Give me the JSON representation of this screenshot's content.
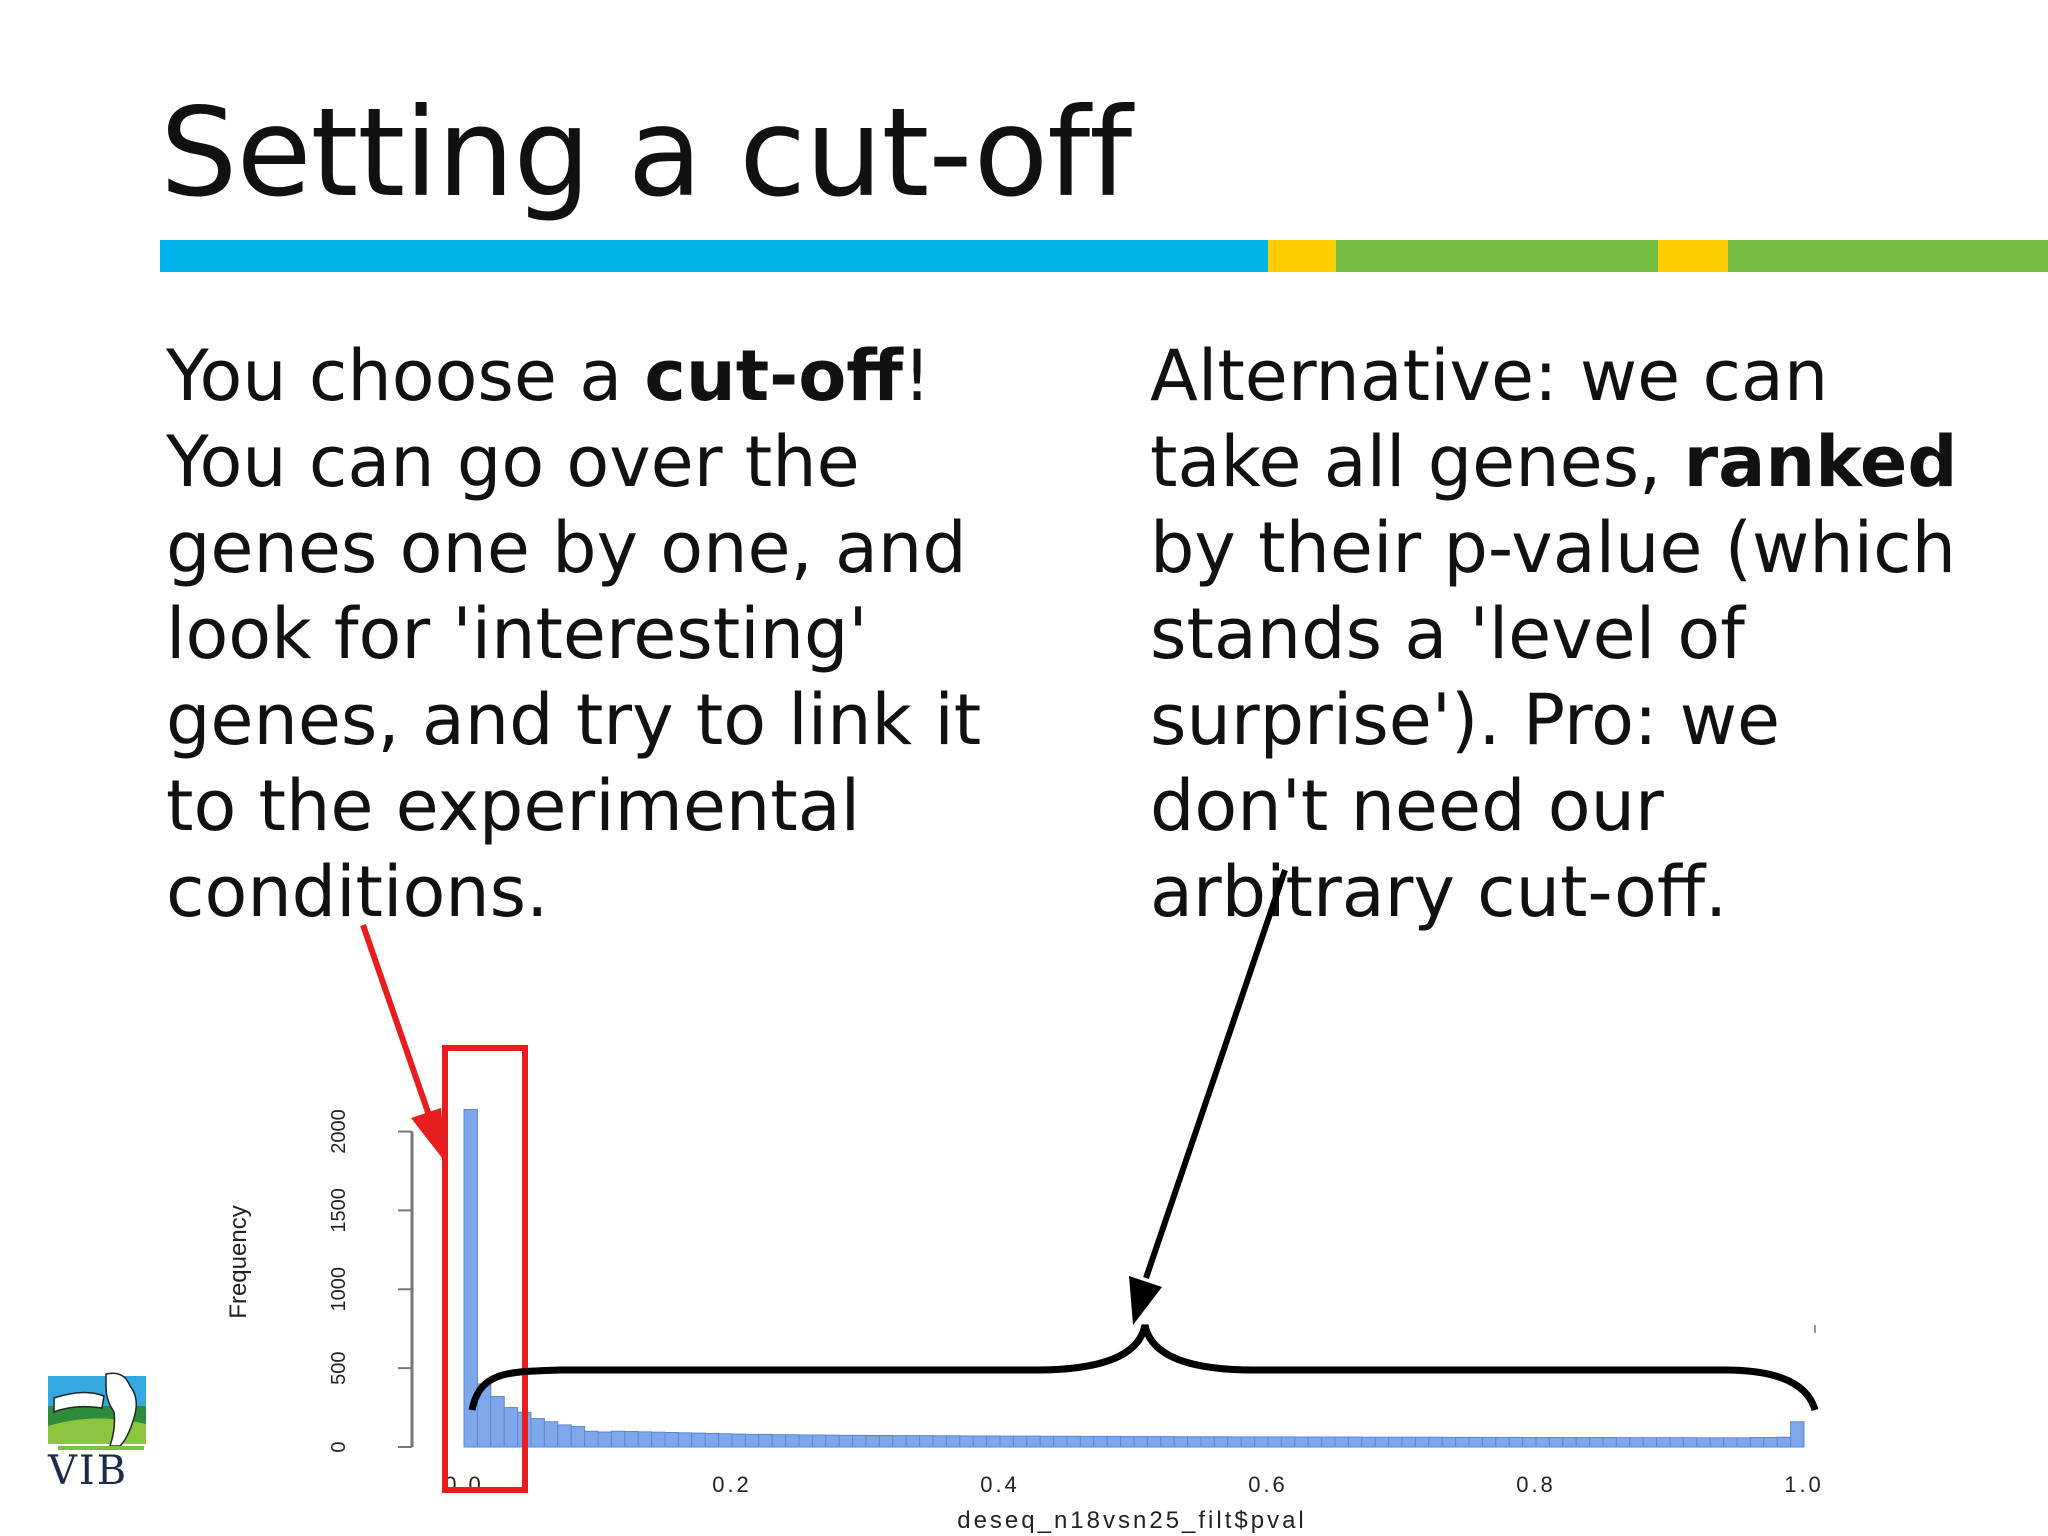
{
  "slide": {
    "title": "Setting a cut-off",
    "left_text": [
      {
        "a": "You choose a ",
        "b": "cut-off",
        "c": "!"
      },
      {
        "a": "You can go over the",
        "b": "",
        "c": ""
      },
      {
        "a": "genes one by one, and",
        "b": "",
        "c": ""
      },
      {
        "a": "look for 'interesting'",
        "b": "",
        "c": ""
      },
      {
        "a": "genes, and try to link it",
        "b": "",
        "c": ""
      },
      {
        "a": "to the experimental",
        "b": "",
        "c": ""
      },
      {
        "a": "conditions.",
        "b": "",
        "c": ""
      }
    ],
    "right_text": [
      {
        "a": "Alternative: we can",
        "b": "",
        "c": ""
      },
      {
        "a": "take all genes, ",
        "b": "ranked",
        "c": ""
      },
      {
        "a": "by their p-value (which",
        "b": "",
        "c": ""
      },
      {
        "a": "stands a 'level of",
        "b": "",
        "c": ""
      },
      {
        "a": "surprise'). Pro: we",
        "b": "",
        "c": ""
      },
      {
        "a": "don't need our",
        "b": "",
        "c": ""
      },
      {
        "a": "arbitrary cut-off.",
        "b": "",
        "c": ""
      }
    ],
    "logo_text": "VIB"
  },
  "colors": {
    "blue_bar": "#00b4ea",
    "yellow_bar": "#ffcc00",
    "green_bar": "#76bd43",
    "histogram_bar": "#7fa8ec",
    "highlight_box": "#e81e1e",
    "brace": "#000000"
  },
  "chart_data": {
    "type": "bar",
    "ylabel": "Frequency",
    "xlabel": "deseq_n18vsn25_filt$pval",
    "ylim": [
      0,
      2200
    ],
    "xlim": [
      0,
      1
    ],
    "yticks": [
      "0",
      "500",
      "1000",
      "1500",
      "2000"
    ],
    "xticks": [
      "0.0",
      "0.2",
      "0.4",
      "0.6",
      "0.8",
      "1.0"
    ],
    "bin_width": 0.01,
    "values": [
      2140,
      400,
      320,
      250,
      220,
      180,
      160,
      140,
      130,
      100,
      95,
      100,
      98,
      96,
      94,
      92,
      90,
      88,
      86,
      84,
      82,
      80,
      80,
      78,
      78,
      76,
      76,
      75,
      74,
      74,
      73,
      73,
      72,
      72,
      72,
      71,
      71,
      70,
      70,
      70,
      69,
      69,
      69,
      68,
      68,
      68,
      67,
      67,
      67,
      66,
      66,
      66,
      66,
      65,
      65,
      65,
      65,
      64,
      64,
      64,
      64,
      64,
      63,
      63,
      63,
      63,
      63,
      62,
      62,
      62,
      62,
      62,
      62,
      61,
      61,
      61,
      61,
      61,
      61,
      60,
      60,
      60,
      60,
      60,
      60,
      60,
      59,
      59,
      59,
      59,
      59,
      59,
      58,
      58,
      58,
      58,
      60,
      60,
      62,
      160
    ]
  }
}
